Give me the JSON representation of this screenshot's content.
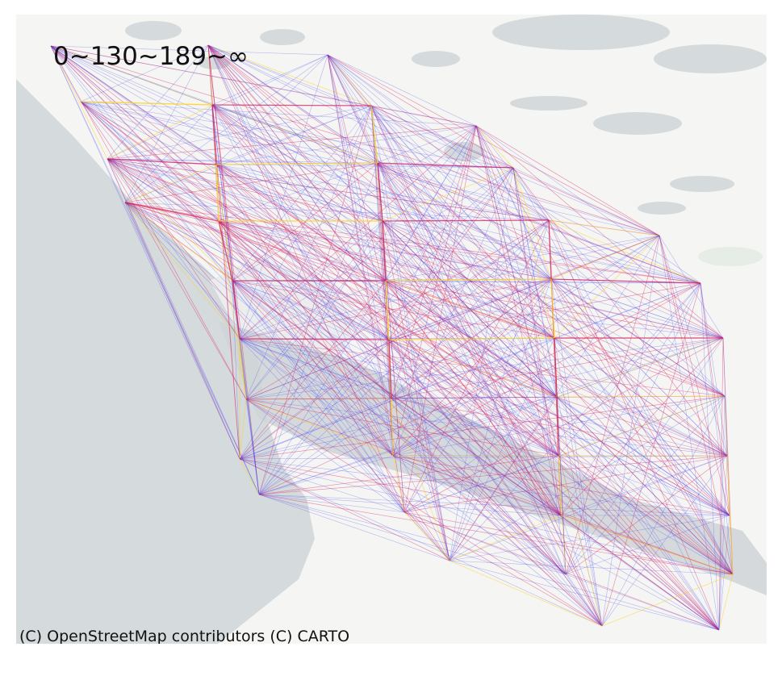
{
  "legend": {
    "title": "0~130~189~∞"
  },
  "attribution": "(C) OpenStreetMap contributors (C) CARTO",
  "colors": {
    "land": "#f5f5f3",
    "water": "#d5dadc",
    "low": "#3b3bf0",
    "mid": "#d81b60",
    "high": "#ffd21a"
  },
  "graph": {
    "description_free": true,
    "node_count": 44
  }
}
